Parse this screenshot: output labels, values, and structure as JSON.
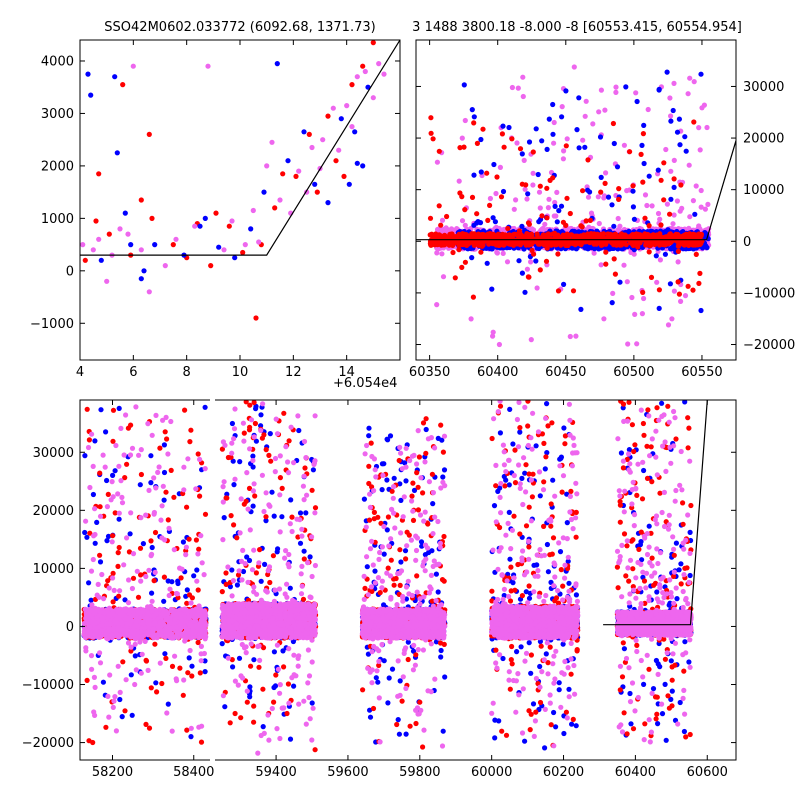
{
  "titles": {
    "top_left": "SSO42M0602.033772 (6092.68, 1371.73)",
    "top_right": "3 1488 3800.18 -8.000 -8 [60553.415, 60554.954]"
  },
  "offset_label": "+6.054e4",
  "colors": {
    "blue": "#0000ff",
    "red": "#ff0000",
    "violet": "#ee66ee",
    "fit": "#000000"
  },
  "chart_data": [
    {
      "panel": "top-left",
      "type": "scatter",
      "title": "SSO42M0602.033772 (6092.68, 1371.73)",
      "xlim": [
        4,
        16
      ],
      "ylim": [
        -1700,
        4400
      ],
      "xticks": [
        "4",
        "6",
        "8",
        "10",
        "12",
        "14"
      ],
      "xtick_values": [
        4,
        6,
        8,
        10,
        12,
        14
      ],
      "yticks": [
        "−1000",
        "0",
        "1000",
        "2000",
        "3000",
        "4000"
      ],
      "ytick_values": [
        -1000,
        0,
        1000,
        2000,
        3000,
        4000
      ],
      "x_offset": "+6.054e4",
      "series": [
        {
          "color": "red",
          "points": [
            [
              4.2,
              200
            ],
            [
              4.6,
              950
            ],
            [
              4.7,
              1850
            ],
            [
              5.1,
              700
            ],
            [
              5.6,
              3550
            ],
            [
              5.9,
              300
            ],
            [
              6.3,
              1350
            ],
            [
              6.6,
              2600
            ],
            [
              6.7,
              1000
            ],
            [
              7.5,
              500
            ],
            [
              8.0,
              250
            ],
            [
              8.4,
              900
            ],
            [
              8.9,
              100
            ],
            [
              9.1,
              1100
            ],
            [
              9.6,
              850
            ],
            [
              10.1,
              350
            ],
            [
              10.6,
              -900
            ],
            [
              10.8,
              500
            ],
            [
              11.3,
              1200
            ],
            [
              11.6,
              1850
            ],
            [
              12.1,
              1800
            ],
            [
              12.6,
              2600
            ],
            [
              12.9,
              1500
            ],
            [
              13.3,
              2950
            ],
            [
              13.6,
              2100
            ],
            [
              13.9,
              1800
            ],
            [
              14.2,
              3550
            ],
            [
              14.6,
              3900
            ],
            [
              15.0,
              4350
            ]
          ]
        },
        {
          "color": "blue",
          "points": [
            [
              4.3,
              3750
            ],
            [
              4.4,
              3350
            ],
            [
              4.8,
              200
            ],
            [
              5.3,
              3700
            ],
            [
              5.4,
              2250
            ],
            [
              5.7,
              1100
            ],
            [
              5.9,
              500
            ],
            [
              6.3,
              -150
            ],
            [
              6.4,
              0
            ],
            [
              6.8,
              500
            ],
            [
              7.9,
              300
            ],
            [
              8.5,
              850
            ],
            [
              8.7,
              1000
            ],
            [
              9.2,
              450
            ],
            [
              9.8,
              250
            ],
            [
              10.4,
              800
            ],
            [
              10.9,
              1500
            ],
            [
              11.4,
              3950
            ],
            [
              11.8,
              2100
            ],
            [
              12.4,
              2650
            ],
            [
              12.8,
              1650
            ],
            [
              13.3,
              1300
            ],
            [
              13.8,
              2900
            ],
            [
              14.1,
              1650
            ],
            [
              14.3,
              2650
            ],
            [
              14.4,
              2050
            ],
            [
              14.6,
              2000
            ],
            [
              14.8,
              3500
            ]
          ]
        },
        {
          "color": "violet",
          "points": [
            [
              4.1,
              500
            ],
            [
              4.5,
              400
            ],
            [
              4.7,
              600
            ],
            [
              5.0,
              -200
            ],
            [
              5.2,
              300
            ],
            [
              5.5,
              800
            ],
            [
              5.8,
              700
            ],
            [
              6.0,
              3900
            ],
            [
              6.3,
              400
            ],
            [
              6.6,
              -400
            ],
            [
              7.2,
              100
            ],
            [
              7.6,
              600
            ],
            [
              8.3,
              850
            ],
            [
              8.8,
              3900
            ],
            [
              9.4,
              400
            ],
            [
              9.7,
              950
            ],
            [
              10.2,
              500
            ],
            [
              10.5,
              1150
            ],
            [
              10.7,
              550
            ],
            [
              11.0,
              2000
            ],
            [
              11.2,
              2450
            ],
            [
              11.5,
              1350
            ],
            [
              11.9,
              1100
            ],
            [
              12.2,
              1900
            ],
            [
              12.5,
              1500
            ],
            [
              12.7,
              2350
            ],
            [
              13.0,
              1950
            ],
            [
              13.1,
              2500
            ],
            [
              13.5,
              3100
            ],
            [
              13.7,
              2300
            ],
            [
              14.0,
              3150
            ],
            [
              14.2,
              2750
            ],
            [
              14.4,
              3700
            ],
            [
              14.7,
              3800
            ],
            [
              15.0,
              3300
            ],
            [
              15.2,
              3950
            ],
            [
              15.4,
              3750
            ]
          ]
        }
      ],
      "fit_line": [
        [
          4,
          300
        ],
        [
          11,
          300
        ],
        [
          16,
          4400
        ]
      ]
    },
    {
      "panel": "top-right",
      "type": "scatter",
      "title": "3 1488 3800.18 -8.000 -8 [60553.415, 60554.954]",
      "xlim": [
        60340,
        60575
      ],
      "ylim": [
        -23000,
        39000
      ],
      "xticks": [
        "60350",
        "60400",
        "60450",
        "60500",
        "60550"
      ],
      "xtick_values": [
        60350,
        60400,
        60450,
        60500,
        60550
      ],
      "yticks": [
        "−20000",
        "−10000",
        "0",
        "10000",
        "20000",
        "30000"
      ],
      "ytick_values": [
        -20000,
        -10000,
        0,
        10000,
        20000,
        30000
      ],
      "clusters": [
        {
          "color": "violet",
          "xrange": [
            60355,
            60555
          ],
          "core": [
            -1500,
            2500
          ],
          "spread": [
            -20000,
            34000
          ]
        },
        {
          "color": "blue",
          "xrange": [
            60370,
            60555
          ],
          "core": [
            -1500,
            2000
          ],
          "spread": [
            -14000,
            33000
          ]
        },
        {
          "color": "red",
          "xrange": [
            60350,
            60550
          ],
          "core": [
            -800,
            1500
          ],
          "spread": [
            -12000,
            25000
          ]
        }
      ],
      "fit_line": [
        [
          60340,
          300
        ],
        [
          60553.4,
          300
        ],
        [
          60575,
          19500
        ]
      ]
    },
    {
      "panel": "bottom",
      "type": "scatter",
      "xlim": [
        58120,
        60680
      ],
      "ylim": [
        -23000,
        39000
      ],
      "xticks": [
        "58200",
        "58400",
        "59400",
        "59600",
        "59800",
        "60000",
        "60200",
        "60400",
        "60600"
      ],
      "xtick_values": [
        58200,
        58400,
        59400,
        59600,
        59800,
        60000,
        60200,
        60400,
        60600
      ],
      "yticks": [
        "−20000",
        "−10000",
        "0",
        "10000",
        "20000",
        "30000"
      ],
      "ytick_values": [
        -20000,
        -10000,
        0,
        10000,
        20000,
        30000
      ],
      "seasons": [
        {
          "xrange": [
            58130,
            58430
          ],
          "core": [
            -2000,
            3000
          ],
          "spread": [
            -20000,
            38000
          ]
        },
        {
          "xrange": [
            59250,
            59510
          ],
          "core": [
            -2000,
            4000
          ],
          "spread": [
            -22000,
            39000
          ]
        },
        {
          "xrange": [
            59640,
            59870
          ],
          "core": [
            -2000,
            3000
          ],
          "spread": [
            -21000,
            36000
          ]
        },
        {
          "xrange": [
            60000,
            60240
          ],
          "core": [
            -2000,
            3500
          ],
          "spread": [
            -22000,
            39000
          ]
        },
        {
          "xrange": [
            60350,
            60555
          ],
          "core": [
            -1500,
            2500
          ],
          "spread": [
            -20000,
            39000
          ]
        }
      ],
      "fit_line": [
        [
          60310,
          300
        ],
        [
          60553.4,
          300
        ],
        [
          60600,
          39000
        ]
      ]
    }
  ]
}
